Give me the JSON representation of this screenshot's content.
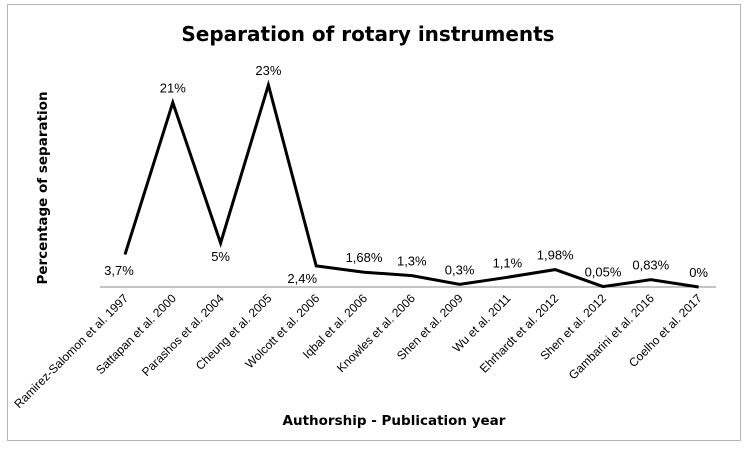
{
  "chart_data": {
    "type": "line",
    "title": "Separation  of rotary instruments",
    "xlabel": "Authorship - Publication year",
    "ylabel": "Percentage of separation",
    "categories": [
      "Ramirez-Salomon et al. 1997",
      "Sattapan et al. 2000",
      "Parashos et al. 2004",
      "Cheung et al. 2005",
      "Wolcott et al. 2006",
      "Iqbal et al. 2006",
      "Knowles et al. 2006",
      "Shen et al. 2009",
      "Wu et al. 2011",
      "Ehrhardt et al. 2012",
      "Shen et al. 2012",
      "Gambarini et al. 2016",
      "Coelho et al. 2017"
    ],
    "values": [
      3.7,
      21,
      5,
      23,
      2.4,
      1.68,
      1.3,
      0.3,
      1.1,
      1.98,
      0.05,
      0.83,
      0
    ],
    "data_labels": [
      "3,7%",
      "21%",
      "5%",
      "23%",
      "2,4%",
      "1,68%",
      "1,3%",
      "0,3%",
      "1,1%",
      "1,98%",
      "0,05%",
      "0,83%",
      "0%"
    ],
    "ylim": [
      0,
      23
    ],
    "grid": false,
    "legend": "none",
    "line_color": "#000000",
    "axis_color": "#888888"
  }
}
